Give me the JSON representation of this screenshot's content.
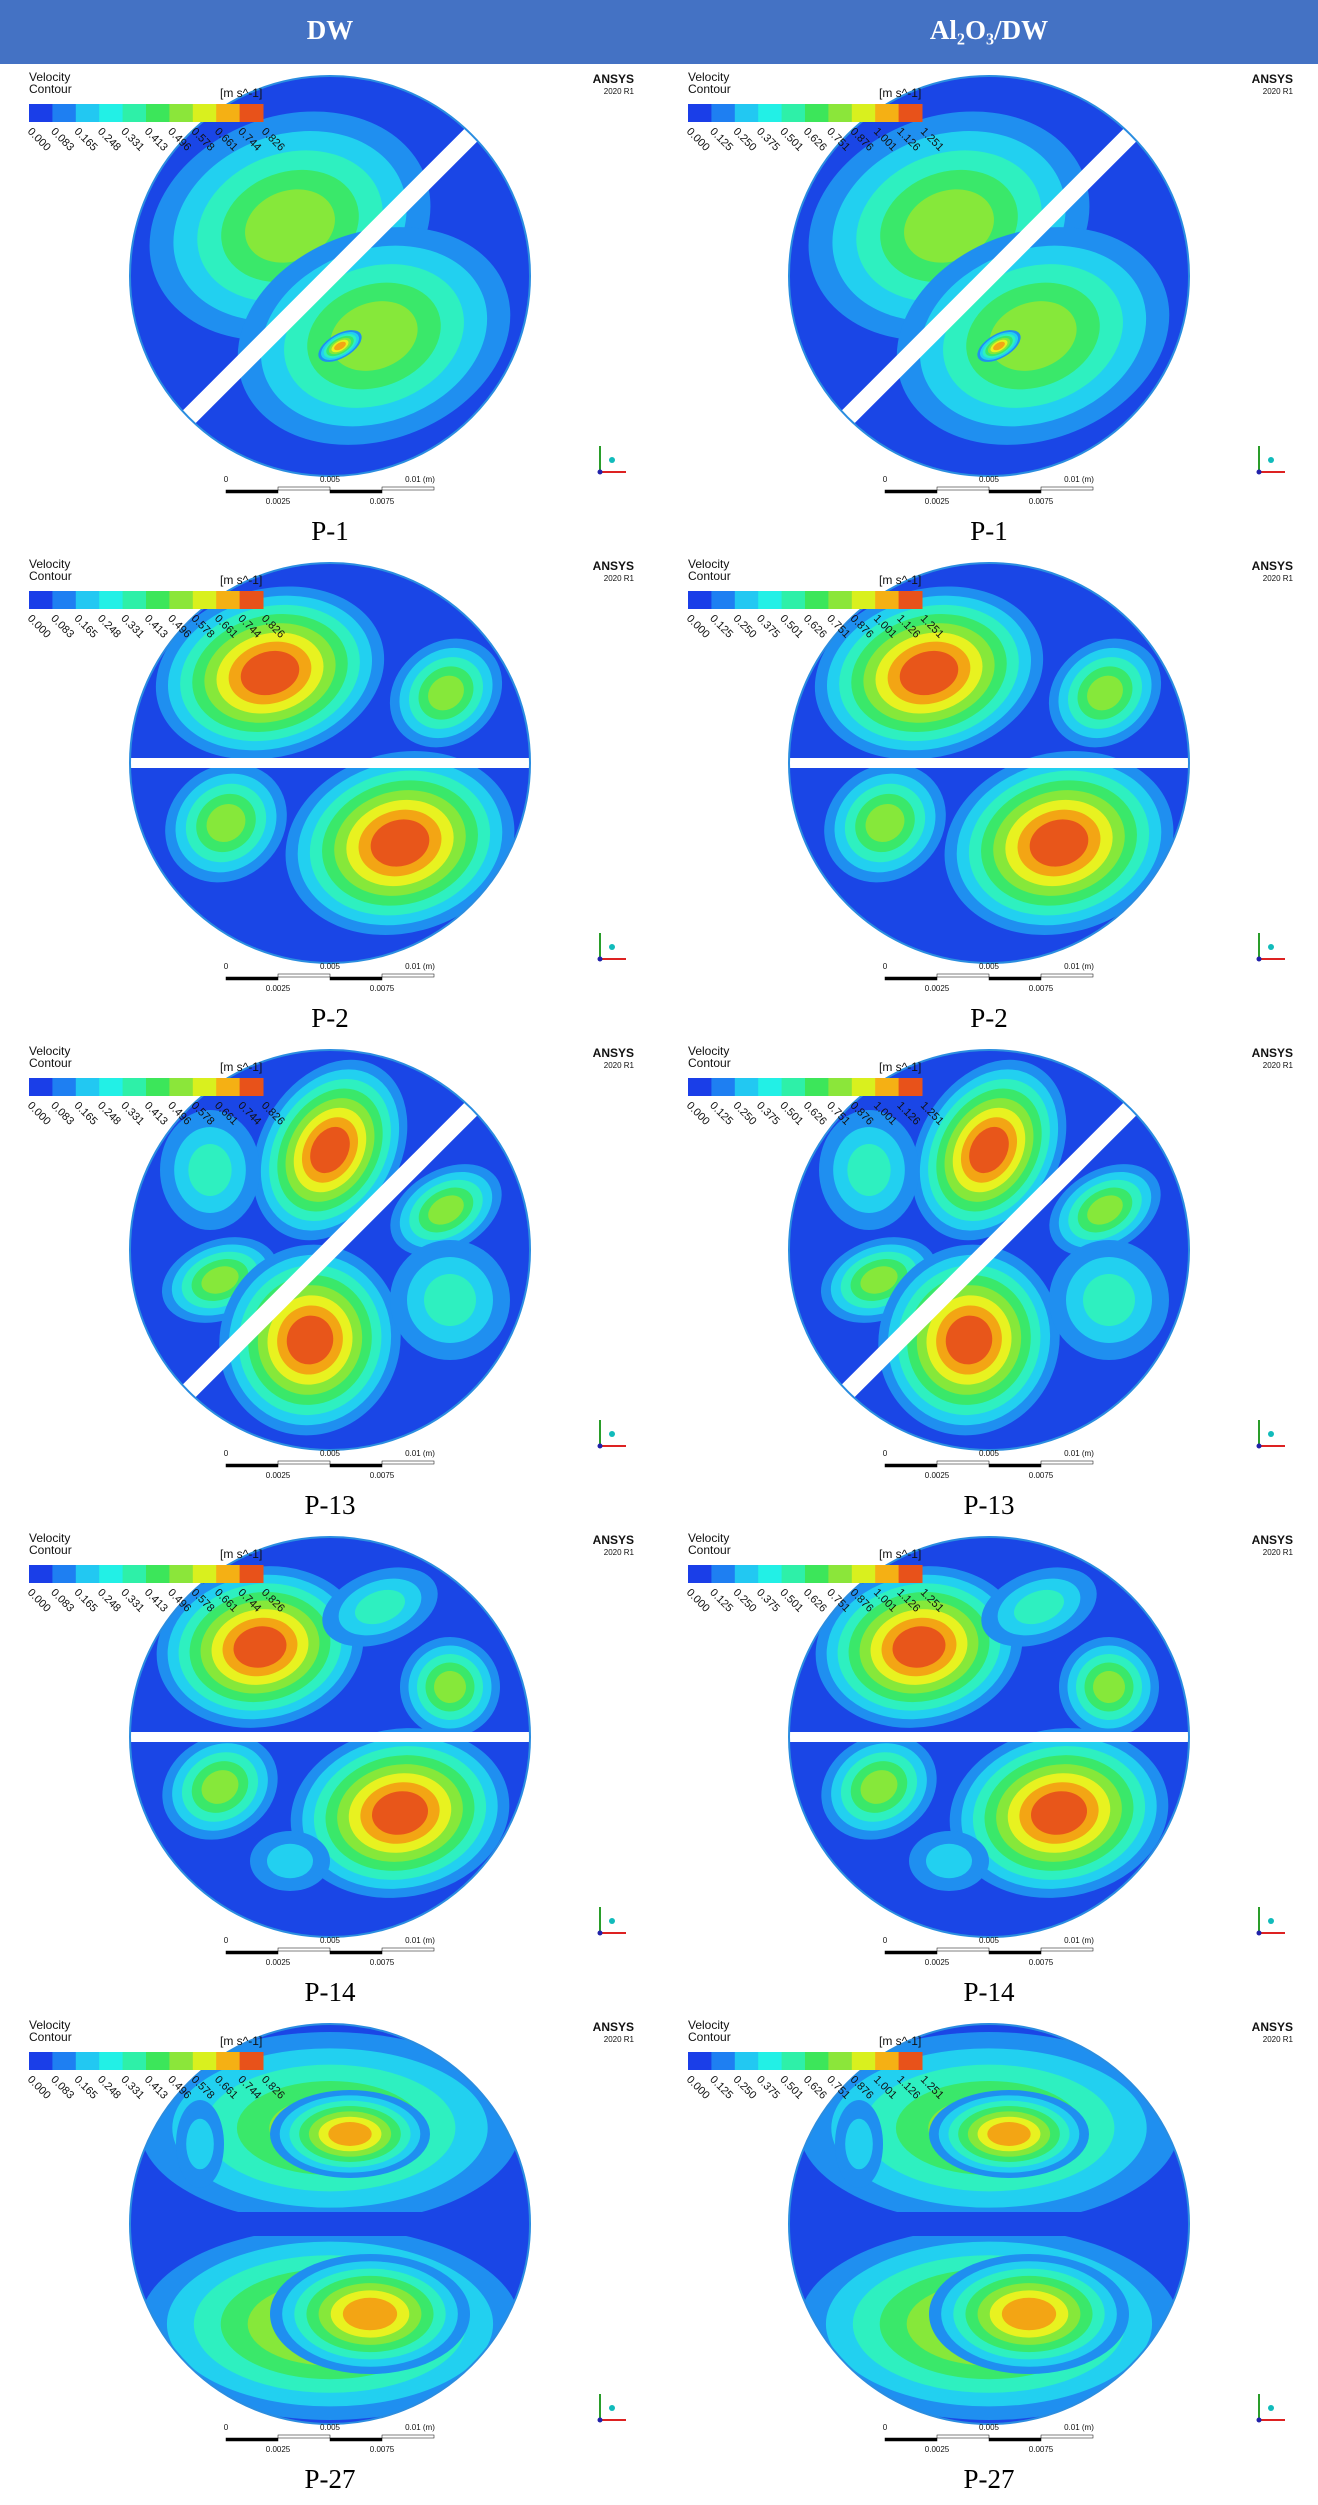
{
  "header": {
    "columns": [
      "DW",
      "Al₂O₃/DW"
    ]
  },
  "legend": {
    "title_line1": "Velocity",
    "title_line2": "Contour",
    "unit": "[m s^-1]",
    "ticks": [
      [
        "0.000",
        "0.083",
        "0.165",
        "0.248",
        "0.331",
        "0.413",
        "0.496",
        "0.578",
        "0.661",
        "0.744",
        "0.826"
      ],
      [
        "0.000",
        "0.125",
        "0.250",
        "0.375",
        "0.501",
        "0.626",
        "0.751",
        "0.876",
        "1.001",
        "1.126",
        "1.251"
      ]
    ]
  },
  "watermark": {
    "brand": "ANSYS",
    "version": "2020 R1"
  },
  "scale_bar": {
    "top_labels": [
      "0",
      "0.005",
      "0.01 (m)"
    ],
    "bottom_labels": [
      "0.0025",
      "0.0075"
    ]
  },
  "rows": [
    "P-1",
    "P-2",
    "P-13",
    "P-14",
    "P-27"
  ]
}
